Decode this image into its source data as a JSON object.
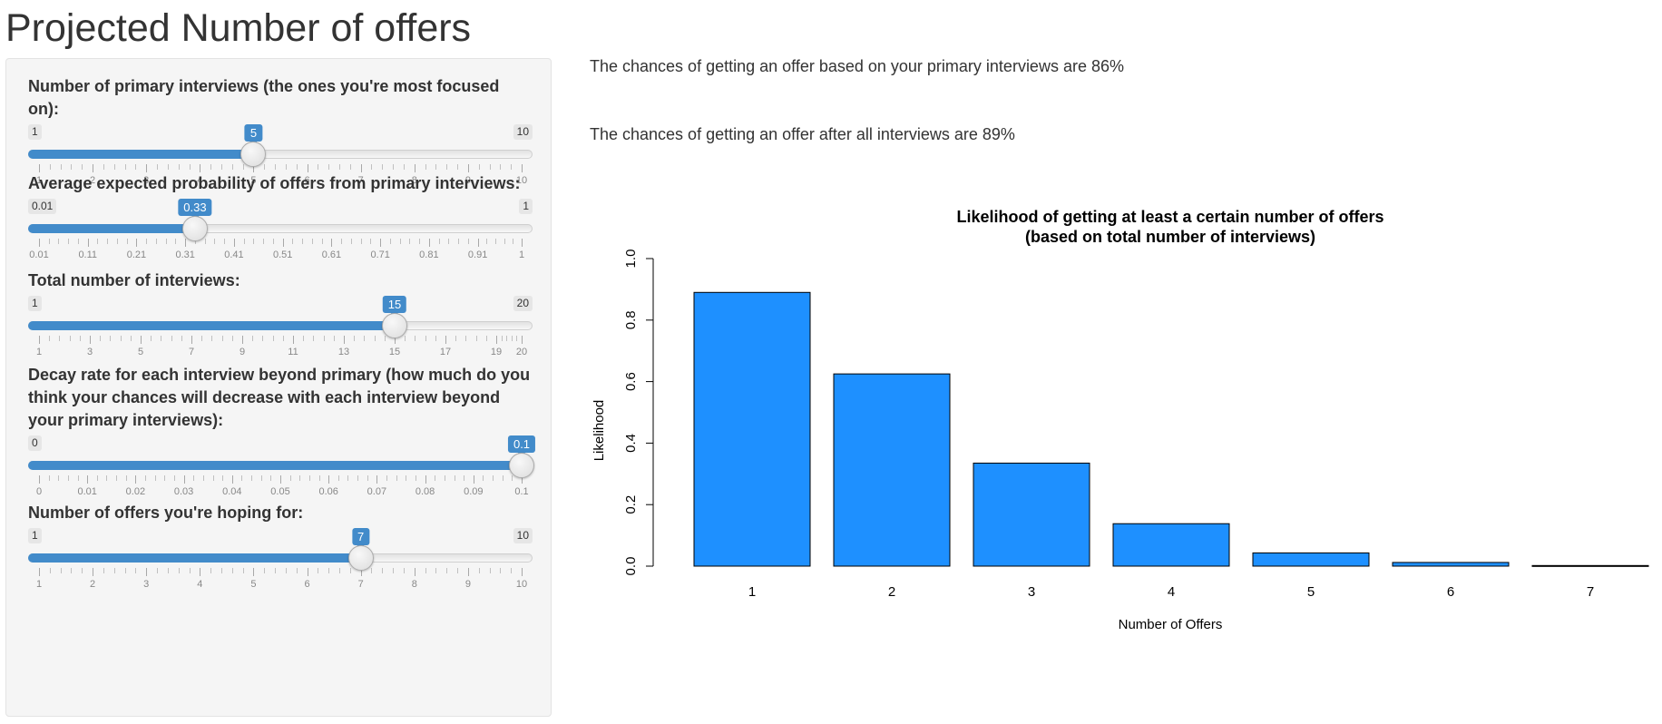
{
  "page": {
    "title": "Projected Number of offers"
  },
  "sidebar": {
    "sliders": [
      {
        "label": "Number of primary interviews (the ones you're most focused on):",
        "min": 1,
        "max": 10,
        "value": 5,
        "min_label": "1",
        "max_label": "10",
        "value_label": "5",
        "tick_labels": [
          "1",
          "2",
          "3",
          "4",
          "5",
          "6",
          "7",
          "8",
          "9",
          "10"
        ],
        "tick_values": [
          1,
          2,
          3,
          4,
          5,
          6,
          7,
          8,
          9,
          10
        ]
      },
      {
        "label": "Average expected probability of offers from primary interviews:",
        "min": 0.01,
        "max": 1,
        "value": 0.33,
        "min_label": "0.01",
        "max_label": "1",
        "value_label": "0.33",
        "tick_labels": [
          "0.01",
          "0.11",
          "0.21",
          "0.31",
          "0.41",
          "0.51",
          "0.61",
          "0.71",
          "0.81",
          "0.91",
          "1"
        ],
        "tick_values": [
          0.01,
          0.11,
          0.21,
          0.31,
          0.41,
          0.51,
          0.61,
          0.71,
          0.81,
          0.91,
          1
        ]
      },
      {
        "label": "Total number of interviews:",
        "min": 1,
        "max": 20,
        "value": 15,
        "min_label": "1",
        "max_label": "20",
        "value_label": "15",
        "tick_labels": [
          "1",
          "3",
          "5",
          "7",
          "9",
          "11",
          "13",
          "15",
          "17",
          "19",
          "20"
        ],
        "tick_values": [
          1,
          3,
          5,
          7,
          9,
          11,
          13,
          15,
          17,
          19,
          20
        ]
      },
      {
        "label": "Decay rate for each interview beyond primary (how much do you think your chances will decrease with each interview beyond your primary interviews):",
        "min": 0,
        "max": 0.1,
        "value": 0.1,
        "min_label": "0",
        "max_label": "0.1",
        "value_label": "0.1",
        "tick_labels": [
          "0",
          "0.01",
          "0.02",
          "0.03",
          "0.04",
          "0.05",
          "0.06",
          "0.07",
          "0.08",
          "0.09",
          "0.1"
        ],
        "tick_values": [
          0,
          0.01,
          0.02,
          0.03,
          0.04,
          0.05,
          0.06,
          0.07,
          0.08,
          0.09,
          0.1
        ]
      },
      {
        "label": "Number of offers you're hoping for:",
        "min": 1,
        "max": 10,
        "value": 7,
        "min_label": "1",
        "max_label": "10",
        "value_label": "7",
        "tick_labels": [
          "1",
          "2",
          "3",
          "4",
          "5",
          "6",
          "7",
          "8",
          "9",
          "10"
        ],
        "tick_values": [
          1,
          2,
          3,
          4,
          5,
          6,
          7,
          8,
          9,
          10
        ]
      }
    ]
  },
  "main": {
    "primary_text": "The chances of getting an offer based on your primary interviews are 86%",
    "all_text": "The chances of getting an offer after all interviews are 89%"
  },
  "chart_data": {
    "type": "bar",
    "title": "Likelihood of getting at least a certain number of offers",
    "subtitle": "(based on total number of interviews)",
    "xlabel": "Number of Offers",
    "ylabel": "Likelihood",
    "categories": [
      "1",
      "2",
      "3",
      "4",
      "5",
      "6",
      "7"
    ],
    "values": [
      0.89,
      0.625,
      0.335,
      0.138,
      0.043,
      0.012,
      0.002
    ],
    "ylim": [
      0,
      1
    ],
    "yticks": [
      "0.0",
      "0.2",
      "0.4",
      "0.6",
      "0.8",
      "1.0"
    ],
    "bar_color": "#1e90ff",
    "grid": false
  }
}
